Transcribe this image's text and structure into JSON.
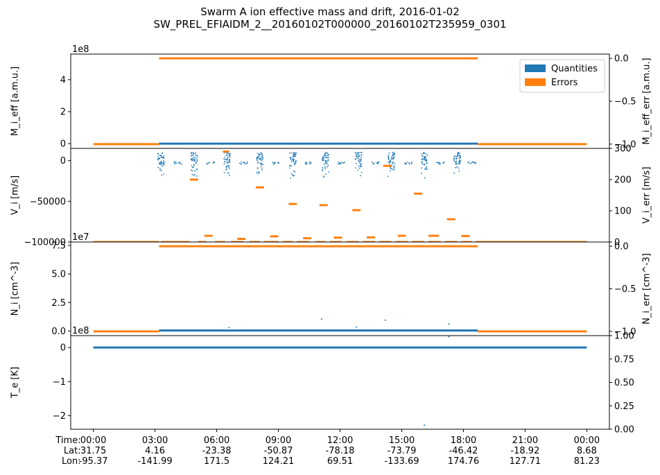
{
  "title": "Swarm A ion effective mass and drift, 2016-01-02",
  "subtitle": "SW_PREL_EFIAIDM_2__20160102T000000_20160102T235959_0301",
  "legend": {
    "items": [
      {
        "label": "Quantities",
        "color": "#1f77b4"
      },
      {
        "label": "Errors",
        "color": "#ff7f0e"
      }
    ],
    "position": "top-right"
  },
  "colors": {
    "quantities": "#1f77b4",
    "errors": "#ff7f0e"
  },
  "chart_data": {
    "type": "scatter",
    "x": {
      "ticks": [
        {
          "time": "00:00",
          "lat": "31.75",
          "lon": "-95.37"
        },
        {
          "time": "03:00",
          "lat": "4.16",
          "lon": "-141.99"
        },
        {
          "time": "06:00",
          "lat": "-23.38",
          "lon": "171.5"
        },
        {
          "time": "09:00",
          "lat": "-50.87",
          "lon": "124.21"
        },
        {
          "time": "12:00",
          "lat": "-78.18",
          "lon": "69.51"
        },
        {
          "time": "15:00",
          "lat": "-73.79",
          "lon": "-133.69"
        },
        {
          "time": "18:00",
          "lat": "-46.42",
          "lon": "174.76"
        },
        {
          "time": "21:00",
          "lat": "-18.92",
          "lon": "127.71"
        },
        {
          "time": "00:00",
          "lat": "8.68",
          "lon": "81.23"
        }
      ],
      "row_labels": [
        "Time:",
        "Lat:",
        "Lon:"
      ],
      "range_hours": [
        -1.1,
        25.1
      ]
    },
    "panels": [
      {
        "left_label": "M_i_eff [a.m.u.]",
        "right_label": "M_i_eff_err [a.m.u.]",
        "offset_text": "1e8",
        "left_ylim": [
          -0.3,
          5.6
        ],
        "left_ticks": [
          {
            "v": 0,
            "t": "0"
          },
          {
            "v": 2,
            "t": "2"
          },
          {
            "v": 4,
            "t": "4"
          }
        ],
        "right_ylim": [
          -1.05,
          0.05
        ],
        "right_ticks": [
          {
            "v": 0,
            "t": "0.0"
          },
          {
            "v": -0.5,
            "t": "−0.5"
          },
          {
            "v": -1,
            "t": "−1.0"
          }
        ],
        "quantities": [
          {
            "x0": 3.2,
            "x1": 18.7,
            "y": 0
          }
        ],
        "errors": [
          {
            "x0": 3.2,
            "x1": 18.7,
            "y": 0
          },
          {
            "x0": 0,
            "x1": 3.2,
            "y": -1
          },
          {
            "x0": 18.7,
            "x1": 24,
            "y": -1
          }
        ]
      },
      {
        "left_label": "V_i [m/s]",
        "right_label": "V_i_err [m/s]",
        "left_ylim": [
          -100000,
          15000
        ],
        "left_ticks": [
          {
            "v": 0,
            "t": "0"
          },
          {
            "v": -50000,
            "t": "−50000"
          },
          {
            "v": -100000,
            "t": "−100000"
          }
        ],
        "right_ylim": [
          0,
          300
        ],
        "right_ticks": [
          {
            "v": 0,
            "t": "0"
          },
          {
            "v": 100,
            "t": "100"
          },
          {
            "v": 200,
            "t": "200"
          },
          {
            "v": 300,
            "t": "300"
          }
        ],
        "bursts": [
          3.3,
          4.9,
          6.5,
          8.1,
          9.7,
          11.3,
          12.9,
          14.5,
          16.1,
          17.7
        ],
        "quiet": [
          4.1,
          5.7,
          7.3,
          8.9,
          10.5,
          12.1,
          13.7,
          15.3,
          16.9,
          18.4
        ],
        "errors": [
          {
            "x0": 0,
            "x1": 3.2,
            "y": 0
          },
          {
            "x0": 3.3,
            "x1": 4.7,
            "y": 0
          },
          {
            "x0": 5.1,
            "x1": 5.5,
            "y": 0
          },
          {
            "x0": 5.9,
            "x1": 6.4,
            "y": 0
          },
          {
            "x0": 6.7,
            "x1": 7.3,
            "y": 0
          },
          {
            "x0": 7.6,
            "x1": 8.1,
            "y": 0
          },
          {
            "x0": 8.3,
            "x1": 9.0,
            "y": 0
          },
          {
            "x0": 9.2,
            "x1": 9.7,
            "y": 0
          },
          {
            "x0": 9.9,
            "x1": 10.5,
            "y": 0
          },
          {
            "x0": 10.8,
            "x1": 11.3,
            "y": 0
          },
          {
            "x0": 11.5,
            "x1": 12.1,
            "y": 0
          },
          {
            "x0": 12.3,
            "x1": 12.9,
            "y": 0
          },
          {
            "x0": 13.1,
            "x1": 13.7,
            "y": 0
          },
          {
            "x0": 13.9,
            "x1": 14.5,
            "y": 0
          },
          {
            "x0": 14.7,
            "x1": 15.3,
            "y": 0
          },
          {
            "x0": 15.5,
            "x1": 16.1,
            "y": 0
          },
          {
            "x0": 16.3,
            "x1": 16.9,
            "y": 0
          },
          {
            "x0": 17.1,
            "x1": 17.7,
            "y": 0
          },
          {
            "x0": 17.9,
            "x1": 18.4,
            "y": 0
          },
          {
            "x0": 18.6,
            "x1": 24,
            "y": 0
          },
          {
            "x0": 4.7,
            "x1": 5.1,
            "y": 200
          },
          {
            "x0": 5.4,
            "x1": 5.8,
            "y": 20
          },
          {
            "x0": 6.3,
            "x1": 6.6,
            "y": 290
          },
          {
            "x0": 7.0,
            "x1": 7.4,
            "y": 10
          },
          {
            "x0": 7.9,
            "x1": 8.3,
            "y": 175
          },
          {
            "x0": 8.6,
            "x1": 9.0,
            "y": 18
          },
          {
            "x0": 9.5,
            "x1": 9.9,
            "y": 122
          },
          {
            "x0": 10.2,
            "x1": 10.6,
            "y": 12
          },
          {
            "x0": 11.0,
            "x1": 11.4,
            "y": 118
          },
          {
            "x0": 11.7,
            "x1": 12.1,
            "y": 14
          },
          {
            "x0": 12.6,
            "x1": 13.0,
            "y": 102
          },
          {
            "x0": 13.3,
            "x1": 13.7,
            "y": 15
          },
          {
            "x0": 14.1,
            "x1": 14.5,
            "y": 244
          },
          {
            "x0": 14.8,
            "x1": 15.2,
            "y": 20
          },
          {
            "x0": 15.6,
            "x1": 16.0,
            "y": 155
          },
          {
            "x0": 16.3,
            "x1": 16.8,
            "y": 20
          },
          {
            "x0": 17.2,
            "x1": 17.6,
            "y": 73
          },
          {
            "x0": 17.9,
            "x1": 18.3,
            "y": 19
          }
        ]
      },
      {
        "left_label": "N_i [cm^-3]",
        "right_label": "N_i_err [cm^-3]",
        "offset_text": "1e7",
        "left_ylim": [
          -0.4,
          7.8
        ],
        "left_ticks": [
          {
            "v": 0,
            "t": "0.0"
          },
          {
            "v": 2.5,
            "t": "2.5"
          },
          {
            "v": 5,
            "t": "5.0"
          },
          {
            "v": 7.5,
            "t": "7.5"
          }
        ],
        "right_ylim": [
          -1.05,
          0.05
        ],
        "right_ticks": [
          {
            "v": 0,
            "t": "0.0"
          },
          {
            "v": -0.5,
            "t": "−0.5"
          },
          {
            "v": -1,
            "t": "−1.0"
          }
        ],
        "quantities": [
          {
            "x0": 3.2,
            "x1": 18.7,
            "y": 0.05
          }
        ],
        "outliers": [
          {
            "x": 11.1,
            "y": 1.05
          },
          {
            "x": 14.2,
            "y": 0.95
          },
          {
            "x": 17.3,
            "y": 0.6
          },
          {
            "x": 12.8,
            "y": 0.35
          },
          {
            "x": 6.6,
            "y": 0.3
          }
        ],
        "errors": [
          {
            "x0": 3.2,
            "x1": 18.7,
            "y": 0
          },
          {
            "x0": 0,
            "x1": 3.2,
            "y": -1
          },
          {
            "x0": 18.7,
            "x1": 24,
            "y": -1
          }
        ]
      },
      {
        "left_label": "T_e [K]",
        "right_label": "",
        "offset_text": "1e8",
        "left_ylim": [
          -2.4,
          0.35
        ],
        "left_ticks": [
          {
            "v": 0,
            "t": "0"
          },
          {
            "v": -1,
            "t": "−1"
          },
          {
            "v": -2,
            "t": "−2"
          }
        ],
        "right_ylim": [
          0,
          1
        ],
        "right_ticks": [
          {
            "v": 0,
            "t": "0.00"
          },
          {
            "v": 0.25,
            "t": "0.25"
          },
          {
            "v": 0.5,
            "t": "0.50"
          },
          {
            "v": 0.75,
            "t": "0.75"
          },
          {
            "v": 1,
            "t": "1.00"
          }
        ],
        "quantities": [
          {
            "x0": 0,
            "x1": 24,
            "y": 0
          }
        ],
        "outliers": [
          {
            "x": 16.1,
            "y": -2.28
          },
          {
            "x": 17.3,
            "y": 0.32
          }
        ],
        "errors": []
      }
    ]
  }
}
